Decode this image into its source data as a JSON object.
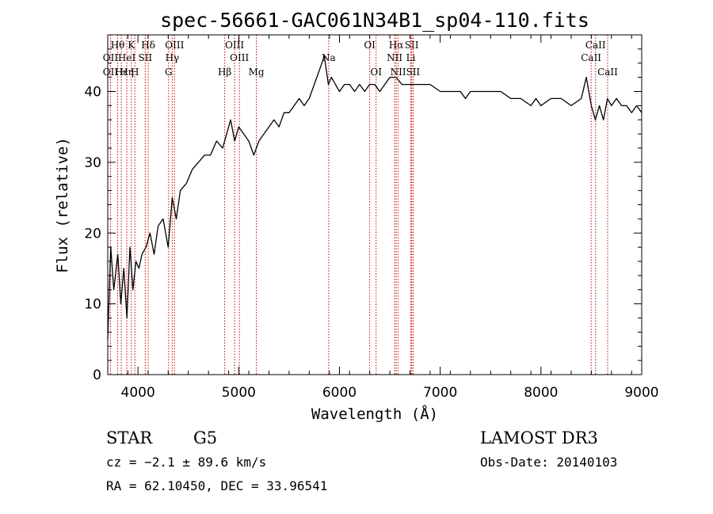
{
  "chart_data": {
    "type": "line",
    "title": "spec-56661-GAC061N34B1_sp04-110.fits",
    "xlabel": "Wavelength (Å)",
    "ylabel": "Flux (relative)",
    "xlim": [
      3700,
      9000
    ],
    "ylim": [
      0,
      48
    ],
    "x_ticks": [
      4000,
      5000,
      6000,
      7000,
      8000,
      9000
    ],
    "y_ticks": [
      0,
      10,
      20,
      30,
      40
    ],
    "grid": false,
    "series": [
      {
        "x": [
          3700,
          3730,
          3760,
          3800,
          3830,
          3860,
          3890,
          3920,
          3950,
          3980,
          4010,
          4040,
          4080,
          4120,
          4160,
          4200,
          4250,
          4300,
          4340,
          4380,
          4420,
          4480,
          4540,
          4600,
          4660,
          4720,
          4780,
          4840,
          4880,
          4920,
          4960,
          5000,
          5050,
          5100,
          5150,
          5200,
          5250,
          5300,
          5350,
          5400,
          5450,
          5500,
          5550,
          5600,
          5650,
          5700,
          5750,
          5800,
          5850,
          5890,
          5920,
          5960,
          6000,
          6050,
          6100,
          6150,
          6200,
          6250,
          6300,
          6350,
          6400,
          6450,
          6500,
          6563,
          6620,
          6680,
          6720,
          6800,
          6900,
          7000,
          7100,
          7200,
          7250,
          7300,
          7400,
          7500,
          7600,
          7700,
          7800,
          7900,
          7950,
          8000,
          8100,
          8200,
          8300,
          8400,
          8450,
          8500,
          8540,
          8580,
          8620,
          8660,
          8700,
          8750,
          8800,
          8850,
          8900,
          8950,
          9000
        ],
        "y": [
          5,
          18,
          12,
          17,
          10,
          15,
          8,
          18,
          12,
          16,
          15,
          17,
          18,
          20,
          17,
          21,
          22,
          18,
          25,
          22,
          26,
          27,
          29,
          30,
          31,
          31,
          33,
          32,
          34,
          36,
          33,
          35,
          34,
          33,
          31,
          33,
          34,
          35,
          36,
          35,
          37,
          37,
          38,
          39,
          38,
          39,
          41,
          43,
          45,
          41,
          42,
          41,
          40,
          41,
          41,
          40,
          41,
          40,
          41,
          41,
          40,
          41,
          42,
          42,
          41,
          41,
          41,
          41,
          41,
          40,
          40,
          40,
          39,
          40,
          40,
          40,
          40,
          39,
          39,
          38,
          39,
          38,
          39,
          39,
          38,
          39,
          42,
          38,
          36,
          38,
          36,
          39,
          38,
          39,
          38,
          38,
          37,
          38,
          37
        ]
      }
    ],
    "spectral_lines": [
      {
        "name": "Hθ",
        "x": 3798,
        "row": 0
      },
      {
        "name": "K",
        "x": 3934,
        "row": 0
      },
      {
        "name": "Hδ",
        "x": 4102,
        "row": 0
      },
      {
        "name": "OIII",
        "x": 4363,
        "row": 0
      },
      {
        "name": "OIII",
        "x": 4959,
        "row": 0
      },
      {
        "name": "OI",
        "x": 6300,
        "row": 0
      },
      {
        "name": "Hα",
        "x": 6563,
        "row": 0
      },
      {
        "name": "SII",
        "x": 6717,
        "row": 0
      },
      {
        "name": "CaII",
        "x": 8542,
        "row": 0
      },
      {
        "name": "OII",
        "x": 3727,
        "row": 1
      },
      {
        "name": "HeI",
        "x": 3889,
        "row": 1
      },
      {
        "name": "SII",
        "x": 4072,
        "row": 1
      },
      {
        "name": "Hγ",
        "x": 4340,
        "row": 1
      },
      {
        "name": "OIII",
        "x": 5007,
        "row": 1
      },
      {
        "name": "Na",
        "x": 5893,
        "row": 1
      },
      {
        "name": "NII",
        "x": 6548,
        "row": 1
      },
      {
        "name": "Li",
        "x": 6708,
        "row": 1
      },
      {
        "name": "CaII",
        "x": 8498,
        "row": 1
      },
      {
        "name": "OII",
        "x": 3727,
        "row": 2
      },
      {
        "name": "Hε",
        "x": 3835,
        "row": 2
      },
      {
        "name": "Hη",
        "x": 3889,
        "row": 2
      },
      {
        "name": "H",
        "x": 3969,
        "row": 2
      },
      {
        "name": "G",
        "x": 4304,
        "row": 2
      },
      {
        "name": "Hβ",
        "x": 4861,
        "row": 2
      },
      {
        "name": "Mg",
        "x": 5175,
        "row": 2
      },
      {
        "name": "OI",
        "x": 6364,
        "row": 2
      },
      {
        "name": "NII",
        "x": 6583,
        "row": 2
      },
      {
        "name": "SII",
        "x": 6731,
        "row": 2
      },
      {
        "name": "CaII",
        "x": 8662,
        "row": 2
      }
    ]
  },
  "info": {
    "object_type": "STAR",
    "subclass": "G5",
    "survey": "LAMOST DR3",
    "cz": "cz = −2.1 ± 89.6 km/s",
    "obs_date": "Obs-Date: 20140103",
    "coords": "RA =  62.10450, DEC =  33.96541"
  },
  "colors": {
    "spectrum": "#000000",
    "line_markers": "#cc0000",
    "frame": "#000000"
  }
}
